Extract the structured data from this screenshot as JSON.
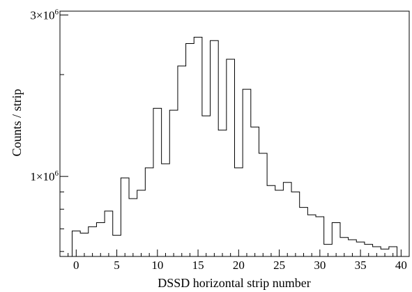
{
  "chart_data": {
    "type": "bar",
    "style": "step-histogram",
    "title": "",
    "xlabel": "DSSD horizontal strip number",
    "ylabel": "Counts / strip",
    "xlim": [
      -2,
      41
    ],
    "ylim": [
      580000,
      3080000
    ],
    "yscale": "log",
    "x_ticks": [
      0,
      5,
      10,
      15,
      20,
      25,
      30,
      35,
      40
    ],
    "x_tick_labels": [
      "0",
      "5",
      "10",
      "15",
      "20",
      "25",
      "30",
      "35",
      "40"
    ],
    "y_ticks": [
      {
        "value": 1000000,
        "mantissa": "1×10",
        "exponent": "6"
      },
      {
        "value": 3000000,
        "mantissa": "3×10",
        "exponent": "6"
      }
    ],
    "grid": false,
    "categories": [
      0,
      1,
      2,
      3,
      4,
      5,
      6,
      7,
      8,
      9,
      10,
      11,
      12,
      13,
      14,
      15,
      16,
      17,
      18,
      19,
      20,
      21,
      22,
      23,
      24,
      25,
      26,
      27,
      28,
      29,
      30,
      31,
      32,
      33,
      34,
      35,
      36,
      37,
      38,
      39
    ],
    "values": [
      690000,
      680000,
      710000,
      730000,
      790000,
      670000,
      990000,
      860000,
      910000,
      1060000,
      1590000,
      1090000,
      1570000,
      2120000,
      2470000,
      2580000,
      1510000,
      2520000,
      1370000,
      2220000,
      1060000,
      1810000,
      1400000,
      1170000,
      940000,
      910000,
      960000,
      900000,
      810000,
      770000,
      760000,
      630000,
      730000,
      660000,
      650000,
      640000,
      630000,
      620000,
      610000,
      620000
    ]
  }
}
